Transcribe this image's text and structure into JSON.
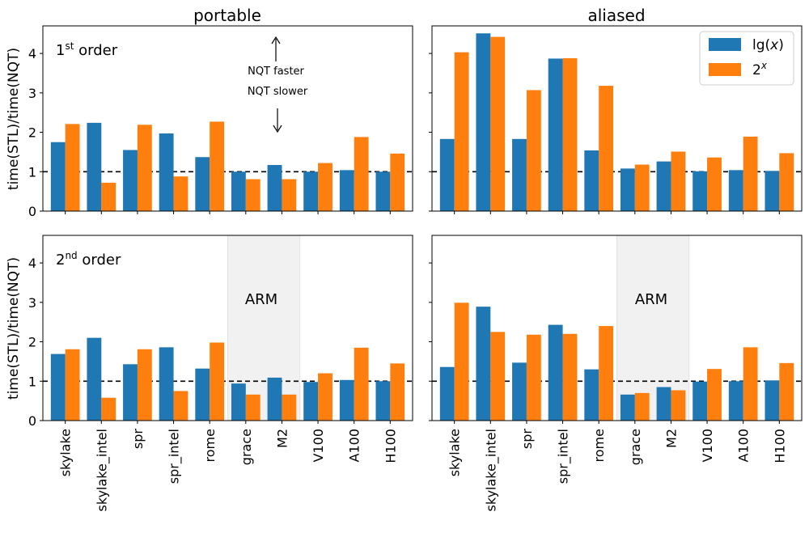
{
  "chart_data": {
    "type": "bar",
    "layout": "2x2 grid of grouped bar charts",
    "column_titles": [
      "portable",
      "aliased"
    ],
    "row_labels": [
      {
        "base": "1",
        "sup": "st",
        "rest": " order"
      },
      {
        "base": "2",
        "sup": "nd",
        "rest": " order"
      }
    ],
    "ylabel": "time(STL)/time(NQT)",
    "ylim": [
      0,
      4.7
    ],
    "yticks": [
      "0",
      "1",
      "2",
      "3",
      "4"
    ],
    "reference_line": 1,
    "categories": [
      "skylake",
      "skylake_intel",
      "spr",
      "spr_intel",
      "rome",
      "grace",
      "M2",
      "V100",
      "A100",
      "H100"
    ],
    "legend": [
      {
        "base": "lg(",
        "italic": "x",
        "tail": ")",
        "color": "#1f77b4"
      },
      {
        "base": "2",
        "sup": "x",
        "color": "#ff7f0e"
      }
    ],
    "legend_position": "top-right of aliased 1st-order panel",
    "arm_region": {
      "label": "ARM",
      "categories": [
        "grace",
        "M2"
      ]
    },
    "arrow_annotation": {
      "up_text": "NQT faster",
      "down_text": "NQT slower"
    },
    "panels": [
      {
        "column": "portable",
        "row": "1st order",
        "series": [
          {
            "name": "lg(x)",
            "color": "#1f77b4",
            "values": [
              1.75,
              2.24,
              1.55,
              1.97,
              1.37,
              1.0,
              1.17,
              1.0,
              1.04,
              1.0
            ]
          },
          {
            "name": "2^x",
            "color": "#ff7f0e",
            "values": [
              2.21,
              0.72,
              2.19,
              0.88,
              2.27,
              0.81,
              0.81,
              1.22,
              1.88,
              1.46
            ]
          }
        ]
      },
      {
        "column": "aliased",
        "row": "1st order",
        "series": [
          {
            "name": "lg(x)",
            "color": "#1f77b4",
            "values": [
              1.83,
              4.51,
              1.83,
              3.87,
              1.54,
              1.08,
              1.26,
              1.01,
              1.04,
              1.02
            ]
          },
          {
            "name": "2^x",
            "color": "#ff7f0e",
            "values": [
              4.03,
              4.42,
              3.07,
              3.88,
              3.18,
              1.18,
              1.51,
              1.36,
              1.89,
              1.47
            ]
          }
        ]
      },
      {
        "column": "portable",
        "row": "2nd order",
        "series": [
          {
            "name": "lg(x)",
            "color": "#1f77b4",
            "values": [
              1.69,
              2.1,
              1.43,
              1.86,
              1.32,
              0.94,
              1.09,
              0.98,
              1.03,
              1.0
            ]
          },
          {
            "name": "2^x",
            "color": "#ff7f0e",
            "values": [
              1.81,
              0.58,
              1.81,
              0.75,
              1.98,
              0.66,
              0.66,
              1.2,
              1.85,
              1.45
            ]
          }
        ]
      },
      {
        "column": "aliased",
        "row": "2nd order",
        "series": [
          {
            "name": "lg(x)",
            "color": "#1f77b4",
            "values": [
              1.36,
              2.89,
              1.47,
              2.43,
              1.3,
              0.66,
              0.85,
              0.99,
              1.0,
              1.02
            ]
          },
          {
            "name": "2^x",
            "color": "#ff7f0e",
            "values": [
              2.99,
              2.25,
              2.18,
              2.2,
              2.4,
              0.7,
              0.77,
              1.31,
              1.86,
              1.46
            ]
          }
        ]
      }
    ]
  }
}
